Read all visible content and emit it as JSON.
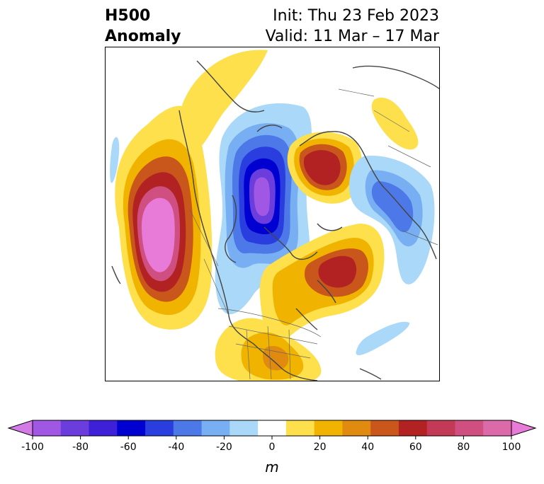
{
  "title": {
    "left_line1": "H500",
    "left_line2": "Anomaly",
    "init": "Init: Thu 23 Feb 2023",
    "valid": "Valid: 11 Mar – 17 Mar"
  },
  "colorbar": {
    "unit": "m",
    "ticks": [
      "-100",
      "-80",
      "-60",
      "-40",
      "-20",
      "0",
      "20",
      "40",
      "60",
      "80",
      "100"
    ],
    "colors": [
      "#d37ae6",
      "#a057e3",
      "#6a3ddc",
      "#3d20d7",
      "#0000d1",
      "#2a3ee0",
      "#4d78e8",
      "#78aef2",
      "#a9d8f8",
      "#ffffff",
      "#fde04c",
      "#f0b400",
      "#e08a10",
      "#c9561a",
      "#b22222",
      "#c23a55",
      "#cf5080",
      "#dd6aa8",
      "#e87ad8"
    ]
  },
  "map": {
    "anomaly_colors": {
      "strong_positive": "#e87ad8",
      "positive": "#b22222",
      "weak_positive": "#fde04c",
      "weak_negative": "#a9d8f8",
      "negative": "#0000d1",
      "strong_negative": "#a057e3"
    }
  }
}
